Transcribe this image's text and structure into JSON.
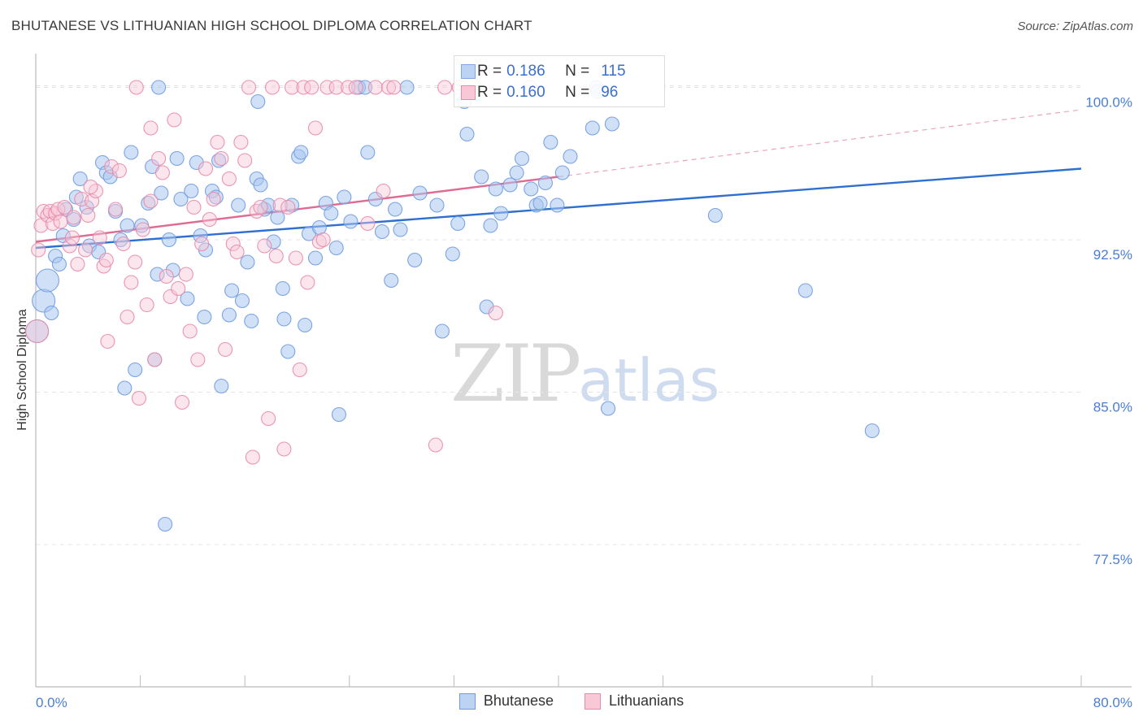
{
  "header": {
    "title": "BHUTANESE VS LITHUANIAN HIGH SCHOOL DIPLOMA CORRELATION CHART",
    "source": "Source: ZipAtlas.com"
  },
  "watermark": {
    "zip": "ZIP",
    "atlas": "atlas"
  },
  "stats": {
    "rows": [
      {
        "r_label": "R =",
        "r": "0.186",
        "n_label": "N =",
        "n": "115",
        "color": "#a9c6ef"
      },
      {
        "r_label": "R =",
        "r": "0.160",
        "n_label": "N =",
        "n": "96",
        "color": "#f5b6c9"
      }
    ]
  },
  "legend": {
    "items": [
      {
        "label": "Bhutanese",
        "color": "#a9c6ef",
        "border": "#6f9be0"
      },
      {
        "label": "Lithuanians",
        "color": "#f8c8d6",
        "border": "#e88aa8"
      }
    ]
  },
  "chart_data": {
    "type": "scatter",
    "title": "BHUTANESE VS LITHUANIAN HIGH SCHOOL DIPLOMA CORRELATION CHART",
    "xlabel": "",
    "ylabel": "High School Diploma",
    "xlim": [
      0,
      80
    ],
    "ylim": [
      70.5,
      101.5
    ],
    "x_tick_labels": [
      "0.0%",
      "80.0%"
    ],
    "y_ticks": [
      77.5,
      85.0,
      92.5,
      100.0
    ],
    "y_tick_labels": [
      "77.5%",
      "85.0%",
      "92.5%",
      "100.0%"
    ],
    "grid": "horizontal dashed",
    "legend_placement": "bottom-center",
    "series": [
      {
        "name": "Bhutanese",
        "color": "#6f9be0",
        "fill": "#a9c6ef",
        "trend": {
          "x": [
            0,
            80
          ],
          "y": [
            92.1,
            96.0
          ],
          "color": "#2f6fd0"
        },
        "points": [
          [
            0.6,
            89.5
          ],
          [
            0.9,
            90.5
          ],
          [
            1.2,
            88.9
          ],
          [
            1.5,
            91.7
          ],
          [
            1.8,
            91.3
          ],
          [
            2.1,
            92.7
          ],
          [
            2.3,
            94.0
          ],
          [
            2.9,
            93.5
          ],
          [
            3.1,
            94.6
          ],
          [
            3.4,
            95.5
          ],
          [
            3.9,
            94.1
          ],
          [
            4.1,
            92.2
          ],
          [
            4.8,
            91.9
          ],
          [
            5.1,
            96.3
          ],
          [
            5.4,
            95.8
          ],
          [
            5.7,
            95.6
          ],
          [
            6.1,
            93.9
          ],
          [
            6.5,
            92.5
          ],
          [
            6.8,
            85.2
          ],
          [
            7.0,
            93.2
          ],
          [
            7.3,
            96.8
          ],
          [
            7.6,
            86.1
          ],
          [
            8.1,
            93.2
          ],
          [
            8.6,
            94.3
          ],
          [
            8.9,
            96.1
          ],
          [
            9.1,
            86.6
          ],
          [
            9.3,
            90.8
          ],
          [
            9.6,
            94.8
          ],
          [
            9.9,
            78.5
          ],
          [
            10.2,
            92.5
          ],
          [
            10.5,
            91.0
          ],
          [
            10.8,
            96.5
          ],
          [
            11.1,
            94.5
          ],
          [
            11.6,
            89.6
          ],
          [
            11.9,
            94.9
          ],
          [
            12.3,
            96.3
          ],
          [
            12.6,
            92.7
          ],
          [
            12.9,
            88.7
          ],
          [
            13.0,
            92.0
          ],
          [
            13.5,
            94.9
          ],
          [
            13.8,
            94.6
          ],
          [
            14.0,
            96.4
          ],
          [
            14.2,
            85.3
          ],
          [
            14.8,
            88.8
          ],
          [
            15.0,
            90.0
          ],
          [
            15.5,
            94.2
          ],
          [
            15.8,
            89.5
          ],
          [
            16.2,
            91.4
          ],
          [
            16.5,
            88.5
          ],
          [
            16.9,
            95.5
          ],
          [
            17.2,
            95.2
          ],
          [
            17.5,
            94.0
          ],
          [
            17.8,
            94.2
          ],
          [
            18.2,
            92.4
          ],
          [
            18.5,
            93.6
          ],
          [
            18.9,
            90.1
          ],
          [
            19.0,
            88.6
          ],
          [
            19.3,
            87.0
          ],
          [
            19.6,
            94.2
          ],
          [
            20.1,
            96.6
          ],
          [
            20.3,
            96.8
          ],
          [
            20.6,
            88.3
          ],
          [
            20.9,
            92.8
          ],
          [
            21.4,
            91.6
          ],
          [
            21.7,
            93.1
          ],
          [
            22.2,
            94.3
          ],
          [
            22.6,
            93.8
          ],
          [
            23.0,
            92.1
          ],
          [
            23.2,
            83.9
          ],
          [
            23.6,
            94.6
          ],
          [
            24.1,
            93.4
          ],
          [
            24.7,
            100.0
          ],
          [
            25.4,
            96.8
          ],
          [
            26.0,
            94.5
          ],
          [
            26.5,
            92.9
          ],
          [
            27.2,
            90.5
          ],
          [
            27.5,
            94.0
          ],
          [
            27.9,
            93.0
          ],
          [
            28.4,
            100.0
          ],
          [
            29.0,
            91.5
          ],
          [
            29.4,
            94.8
          ],
          [
            30.7,
            94.2
          ],
          [
            31.1,
            88.0
          ],
          [
            31.9,
            91.8
          ],
          [
            32.3,
            93.3
          ],
          [
            32.8,
            99.3
          ],
          [
            33.0,
            97.7
          ],
          [
            34.1,
            95.6
          ],
          [
            34.5,
            89.2
          ],
          [
            34.8,
            93.2
          ],
          [
            35.2,
            95.0
          ],
          [
            35.6,
            93.8
          ],
          [
            36.3,
            95.2
          ],
          [
            36.8,
            95.8
          ],
          [
            37.2,
            96.5
          ],
          [
            37.9,
            95.0
          ],
          [
            38.3,
            94.2
          ],
          [
            38.6,
            94.3
          ],
          [
            39.0,
            95.3
          ],
          [
            39.4,
            97.3
          ],
          [
            39.9,
            94.2
          ],
          [
            40.3,
            95.8
          ],
          [
            40.9,
            96.6
          ],
          [
            42.6,
            98.0
          ],
          [
            42.9,
            100.0
          ],
          [
            43.8,
            84.2
          ],
          [
            44.1,
            98.2
          ],
          [
            52.0,
            93.7
          ],
          [
            58.9,
            90.0
          ],
          [
            64.0,
            83.1
          ],
          [
            9.4,
            100.0
          ],
          [
            25.2,
            100.0
          ],
          [
            0.1,
            88.0
          ],
          [
            43.0,
            99.8
          ],
          [
            17.0,
            99.3
          ]
        ]
      },
      {
        "name": "Lithuanians",
        "color": "#e88aa8",
        "fill": "#f8c8d6",
        "trend": {
          "x": [
            0,
            40
          ],
          "y": [
            92.4,
            95.6
          ],
          "color": "#e06a93"
        },
        "trend_extension": {
          "x": [
            40,
            80
          ],
          "y": [
            95.6,
            98.9
          ]
        },
        "points": [
          [
            0.2,
            92.0
          ],
          [
            0.4,
            93.2
          ],
          [
            0.6,
            93.9
          ],
          [
            0.9,
            93.7
          ],
          [
            1.1,
            93.9
          ],
          [
            1.3,
            93.3
          ],
          [
            1.5,
            93.8
          ],
          [
            1.7,
            94.0
          ],
          [
            1.9,
            93.4
          ],
          [
            2.2,
            94.1
          ],
          [
            2.6,
            92.2
          ],
          [
            2.9,
            93.6
          ],
          [
            3.2,
            91.3
          ],
          [
            3.5,
            94.5
          ],
          [
            3.8,
            92.0
          ],
          [
            4.0,
            93.7
          ],
          [
            4.3,
            94.4
          ],
          [
            4.6,
            94.9
          ],
          [
            4.9,
            92.6
          ],
          [
            5.2,
            91.2
          ],
          [
            5.5,
            87.5
          ],
          [
            5.8,
            96.1
          ],
          [
            6.1,
            94.0
          ],
          [
            6.4,
            95.9
          ],
          [
            6.7,
            92.3
          ],
          [
            7.0,
            88.7
          ],
          [
            7.3,
            90.4
          ],
          [
            7.6,
            91.4
          ],
          [
            7.9,
            84.7
          ],
          [
            8.2,
            93.0
          ],
          [
            8.5,
            89.3
          ],
          [
            8.8,
            94.4
          ],
          [
            9.1,
            86.6
          ],
          [
            9.4,
            96.5
          ],
          [
            9.7,
            95.8
          ],
          [
            10.0,
            90.7
          ],
          [
            10.3,
            89.7
          ],
          [
            10.6,
            98.4
          ],
          [
            10.9,
            90.1
          ],
          [
            11.2,
            84.5
          ],
          [
            11.5,
            90.8
          ],
          [
            11.8,
            88.0
          ],
          [
            12.1,
            94.1
          ],
          [
            12.4,
            86.6
          ],
          [
            12.7,
            92.3
          ],
          [
            13.0,
            96.0
          ],
          [
            13.3,
            93.5
          ],
          [
            13.6,
            94.5
          ],
          [
            13.9,
            97.3
          ],
          [
            14.2,
            96.5
          ],
          [
            14.5,
            87.1
          ],
          [
            14.8,
            95.5
          ],
          [
            15.1,
            92.3
          ],
          [
            15.4,
            91.9
          ],
          [
            15.7,
            97.3
          ],
          [
            16.0,
            96.4
          ],
          [
            16.3,
            100.0
          ],
          [
            16.6,
            81.8
          ],
          [
            16.9,
            93.9
          ],
          [
            17.2,
            94.1
          ],
          [
            17.5,
            92.2
          ],
          [
            17.8,
            83.7
          ],
          [
            18.1,
            100.0
          ],
          [
            18.4,
            91.7
          ],
          [
            18.7,
            94.2
          ],
          [
            19.0,
            82.2
          ],
          [
            19.3,
            94.1
          ],
          [
            19.6,
            100.0
          ],
          [
            19.9,
            91.6
          ],
          [
            20.2,
            86.1
          ],
          [
            20.5,
            100.0
          ],
          [
            20.8,
            90.4
          ],
          [
            21.1,
            100.0
          ],
          [
            21.4,
            98.0
          ],
          [
            21.7,
            92.4
          ],
          [
            22.0,
            92.5
          ],
          [
            22.3,
            100.0
          ],
          [
            23.0,
            100.0
          ],
          [
            23.9,
            100.0
          ],
          [
            24.5,
            100.0
          ],
          [
            25.4,
            93.3
          ],
          [
            26.0,
            100.0
          ],
          [
            26.6,
            94.9
          ],
          [
            27.0,
            100.0
          ],
          [
            27.4,
            100.0
          ],
          [
            30.6,
            82.4
          ],
          [
            31.3,
            100.0
          ],
          [
            32.4,
            100.0
          ],
          [
            35.2,
            88.9
          ],
          [
            37.8,
            100.0
          ],
          [
            7.7,
            100.0
          ],
          [
            8.8,
            98.0
          ],
          [
            5.4,
            91.5
          ],
          [
            0.1,
            88.0
          ],
          [
            2.8,
            92.6
          ],
          [
            4.2,
            95.1
          ]
        ]
      }
    ]
  }
}
